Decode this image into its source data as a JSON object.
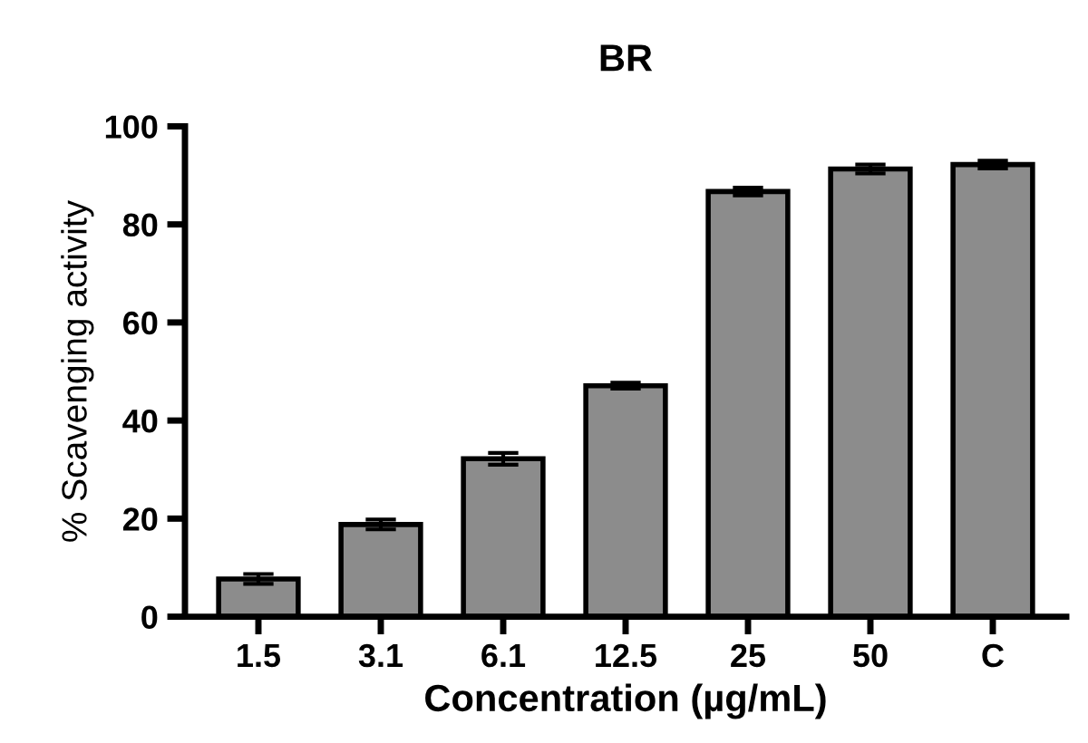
{
  "chart_data": {
    "type": "bar",
    "title": "BR",
    "xlabel": "Concentration (µg/mL)",
    "ylabel": "% Scavenging activity",
    "categories": [
      "1.5",
      "3.1",
      "6.1",
      "12.5",
      "25",
      "50",
      "C"
    ],
    "values": [
      7.7,
      18.8,
      32.2,
      47.1,
      86.7,
      91.3,
      92.2
    ],
    "errors": [
      1.0,
      1.0,
      1.2,
      0.6,
      0.8,
      0.9,
      0.8
    ],
    "color": "#8c8c8c",
    "ylim": [
      0,
      100
    ],
    "yticks": [
      0,
      20,
      40,
      60,
      80,
      100
    ],
    "grid": false,
    "legend": false
  }
}
